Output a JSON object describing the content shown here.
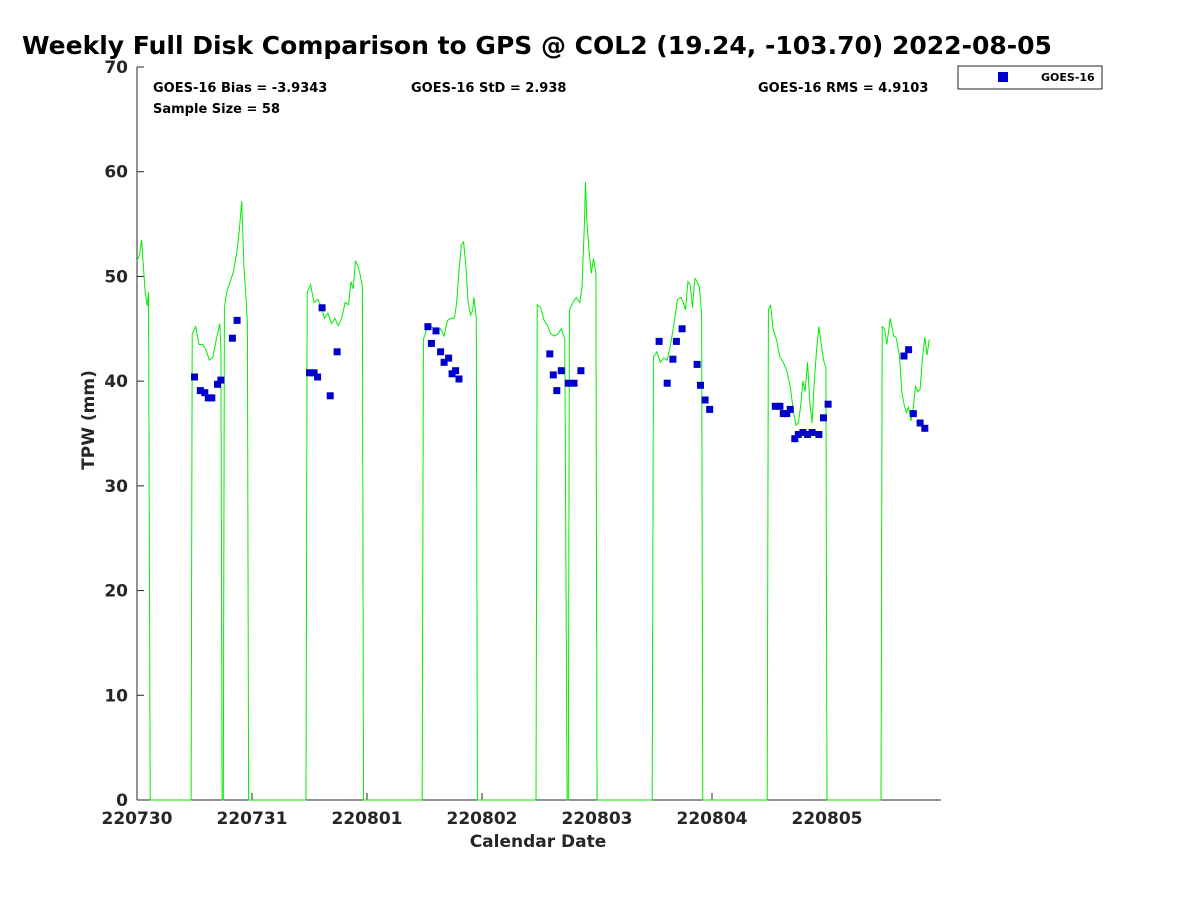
{
  "chart_data": {
    "type": "line",
    "title": "Weekly Full Disk Comparison to GPS @ COL2 (19.24, -103.70) 2022-08-05",
    "xlabel": "Calendar Date",
    "ylabel": "TPW (mm)",
    "xlim": [
      0,
      7
    ],
    "ylim": [
      0,
      70
    ],
    "x_ticks": [
      {
        "value": 0,
        "label": "220730"
      },
      {
        "value": 1,
        "label": "220731"
      },
      {
        "value": 2,
        "label": "220801"
      },
      {
        "value": 3,
        "label": "220802"
      },
      {
        "value": 4,
        "label": "220803"
      },
      {
        "value": 5,
        "label": "220804"
      },
      {
        "value": 6,
        "label": "220805"
      }
    ],
    "y_ticks": [
      0,
      10,
      20,
      30,
      40,
      50,
      60,
      70
    ],
    "grid": false,
    "legend": {
      "position": "outside-top-right",
      "entries": [
        "GOES-16"
      ]
    },
    "stats": {
      "bias": "GOES-16 Bias = -3.9343",
      "std": "GOES-16 StD = 2.938",
      "rms": "GOES-16 RMS = 4.9103",
      "sample": "Sample Size = 58"
    },
    "gps_line": {
      "color": "#00ee00",
      "points": [
        [
          0.0,
          51.5
        ],
        [
          0.02,
          52.0
        ],
        [
          0.04,
          53.5
        ],
        [
          0.07,
          48.5
        ],
        [
          0.09,
          47.2
        ],
        [
          0.1,
          48.5
        ],
        [
          0.115,
          0.0
        ],
        [
          0.47,
          0.0
        ],
        [
          0.48,
          44.5
        ],
        [
          0.51,
          45.2
        ],
        [
          0.54,
          43.5
        ],
        [
          0.57,
          43.5
        ],
        [
          0.6,
          43.0
        ],
        [
          0.63,
          42.0
        ],
        [
          0.66,
          42.3
        ],
        [
          0.69,
          44.0
        ],
        [
          0.72,
          45.5
        ],
        [
          0.73,
          43.0
        ],
        [
          0.74,
          0.0
        ],
        [
          0.75,
          0.0
        ],
        [
          0.76,
          47.0
        ],
        [
          0.78,
          48.5
        ],
        [
          0.81,
          49.5
        ],
        [
          0.84,
          50.5
        ],
        [
          0.87,
          52.5
        ],
        [
          0.89,
          54.5
        ],
        [
          0.91,
          57.2
        ],
        [
          0.93,
          51.0
        ],
        [
          0.95,
          47.5
        ],
        [
          0.96,
          45.5
        ],
        [
          0.97,
          0.0
        ],
        [
          1.47,
          0.0
        ],
        [
          1.48,
          48.5
        ],
        [
          1.51,
          49.2
        ],
        [
          1.54,
          47.5
        ],
        [
          1.57,
          47.8
        ],
        [
          1.6,
          47.2
        ],
        [
          1.63,
          46.0
        ],
        [
          1.66,
          46.5
        ],
        [
          1.69,
          45.5
        ],
        [
          1.72,
          46.0
        ],
        [
          1.75,
          45.3
        ],
        [
          1.78,
          46.0
        ],
        [
          1.81,
          47.5
        ],
        [
          1.84,
          47.3
        ],
        [
          1.86,
          49.5
        ],
        [
          1.88,
          48.8
        ],
        [
          1.9,
          51.5
        ],
        [
          1.92,
          51.0
        ],
        [
          1.94,
          50.2
        ],
        [
          1.96,
          49.0
        ],
        [
          1.97,
          0.0
        ],
        [
          2.48,
          0.0
        ],
        [
          2.49,
          44.0
        ],
        [
          2.52,
          45.0
        ],
        [
          2.55,
          45.3
        ],
        [
          2.58,
          45.0
        ],
        [
          2.61,
          44.8
        ],
        [
          2.64,
          45.0
        ],
        [
          2.67,
          44.3
        ],
        [
          2.7,
          45.8
        ],
        [
          2.73,
          46.0
        ],
        [
          2.76,
          46.0
        ],
        [
          2.78,
          47.5
        ],
        [
          2.8,
          50.5
        ],
        [
          2.82,
          53.0
        ],
        [
          2.84,
          53.3
        ],
        [
          2.86,
          51.0
        ],
        [
          2.88,
          47.5
        ],
        [
          2.9,
          46.3
        ],
        [
          2.92,
          46.8
        ],
        [
          2.93,
          48.0
        ],
        [
          2.95,
          46.0
        ],
        [
          2.96,
          0.0
        ],
        [
          3.47,
          0.0
        ],
        [
          3.48,
          47.3
        ],
        [
          3.51,
          47.0
        ],
        [
          3.54,
          45.8
        ],
        [
          3.57,
          45.3
        ],
        [
          3.6,
          44.5
        ],
        [
          3.63,
          44.3
        ],
        [
          3.66,
          44.5
        ],
        [
          3.69,
          45.0
        ],
        [
          3.72,
          44.0
        ],
        [
          3.74,
          0.0
        ],
        [
          3.75,
          0.0
        ],
        [
          3.76,
          46.8
        ],
        [
          3.79,
          47.5
        ],
        [
          3.82,
          48.0
        ],
        [
          3.85,
          47.5
        ],
        [
          3.87,
          49.0
        ],
        [
          3.89,
          55.0
        ],
        [
          3.9,
          59.0
        ],
        [
          3.91,
          55.5
        ],
        [
          3.93,
          52.5
        ],
        [
          3.95,
          50.3
        ],
        [
          3.97,
          51.7
        ],
        [
          3.99,
          50.3
        ],
        [
          4.0,
          0.0
        ],
        [
          4.48,
          0.0
        ],
        [
          4.49,
          42.3
        ],
        [
          4.52,
          42.8
        ],
        [
          4.55,
          41.8
        ],
        [
          4.58,
          42.2
        ],
        [
          4.61,
          42.0
        ],
        [
          4.64,
          43.5
        ],
        [
          4.67,
          45.5
        ],
        [
          4.7,
          47.8
        ],
        [
          4.73,
          48.0
        ],
        [
          4.75,
          47.5
        ],
        [
          4.77,
          46.8
        ],
        [
          4.79,
          49.5
        ],
        [
          4.81,
          49.2
        ],
        [
          4.83,
          47.0
        ],
        [
          4.85,
          49.8
        ],
        [
          4.87,
          49.5
        ],
        [
          4.89,
          49.0
        ],
        [
          4.91,
          46.5
        ],
        [
          4.92,
          0.0
        ],
        [
          5.48,
          0.0
        ],
        [
          5.49,
          46.8
        ],
        [
          5.51,
          47.3
        ],
        [
          5.53,
          45.0
        ],
        [
          5.56,
          44.0
        ],
        [
          5.59,
          42.3
        ],
        [
          5.62,
          41.8
        ],
        [
          5.65,
          41.0
        ],
        [
          5.68,
          39.5
        ],
        [
          5.71,
          37.0
        ],
        [
          5.73,
          35.8
        ],
        [
          5.75,
          36.0
        ],
        [
          5.77,
          37.5
        ],
        [
          5.79,
          40.0
        ],
        [
          5.81,
          39.0
        ],
        [
          5.83,
          41.8
        ],
        [
          5.85,
          38.0
        ],
        [
          5.87,
          36.0
        ],
        [
          5.89,
          40.0
        ],
        [
          5.91,
          43.0
        ],
        [
          5.93,
          45.2
        ],
        [
          5.95,
          43.5
        ],
        [
          5.97,
          42.0
        ],
        [
          5.99,
          41.3
        ],
        [
          6.0,
          0.0
        ],
        [
          6.47,
          0.0
        ],
        [
          6.48,
          45.2
        ],
        [
          6.5,
          45.0
        ],
        [
          6.52,
          43.5
        ],
        [
          6.55,
          46.0
        ],
        [
          6.58,
          44.3
        ],
        [
          6.6,
          44.2
        ],
        [
          6.63,
          42.5
        ],
        [
          6.65,
          39.0
        ],
        [
          6.67,
          37.8
        ],
        [
          6.69,
          37.0
        ],
        [
          6.71,
          37.5
        ],
        [
          6.73,
          36.2
        ],
        [
          6.75,
          37.5
        ],
        [
          6.77,
          39.5
        ],
        [
          6.79,
          39.0
        ],
        [
          6.81,
          39.2
        ],
        [
          6.83,
          42.3
        ],
        [
          6.85,
          44.2
        ],
        [
          6.87,
          42.5
        ],
        [
          6.89,
          44.0
        ]
      ]
    },
    "series": [
      {
        "name": "GOES-16",
        "color": "#0000cc",
        "points": [
          [
            0.5,
            40.4
          ],
          [
            0.55,
            39.1
          ],
          [
            0.59,
            38.9
          ],
          [
            0.62,
            38.4
          ],
          [
            0.65,
            38.4
          ],
          [
            0.7,
            39.7
          ],
          [
            0.73,
            40.1
          ],
          [
            0.83,
            44.1
          ],
          [
            0.87,
            45.8
          ],
          [
            1.5,
            40.8
          ],
          [
            1.54,
            40.8
          ],
          [
            1.57,
            40.4
          ],
          [
            1.61,
            47.0
          ],
          [
            1.68,
            38.6
          ],
          [
            1.74,
            42.8
          ],
          [
            2.53,
            45.2
          ],
          [
            2.56,
            43.6
          ],
          [
            2.6,
            44.8
          ],
          [
            2.64,
            42.8
          ],
          [
            2.67,
            41.8
          ],
          [
            2.71,
            42.2
          ],
          [
            2.74,
            40.7
          ],
          [
            2.77,
            41.0
          ],
          [
            2.8,
            40.2
          ],
          [
            3.59,
            42.6
          ],
          [
            3.62,
            40.6
          ],
          [
            3.65,
            39.1
          ],
          [
            3.69,
            41.0
          ],
          [
            3.75,
            39.8
          ],
          [
            3.8,
            39.8
          ],
          [
            3.86,
            41.0
          ],
          [
            4.54,
            43.8
          ],
          [
            4.61,
            39.8
          ],
          [
            4.66,
            42.1
          ],
          [
            4.69,
            43.8
          ],
          [
            4.74,
            45.0
          ],
          [
            4.87,
            41.6
          ],
          [
            4.9,
            39.6
          ],
          [
            4.94,
            38.2
          ],
          [
            4.98,
            37.3
          ],
          [
            5.55,
            37.6
          ],
          [
            5.59,
            37.6
          ],
          [
            5.62,
            36.9
          ],
          [
            5.65,
            36.9
          ],
          [
            5.68,
            37.3
          ],
          [
            5.72,
            34.5
          ],
          [
            5.75,
            34.9
          ],
          [
            5.79,
            35.1
          ],
          [
            5.83,
            34.9
          ],
          [
            5.87,
            35.1
          ],
          [
            5.93,
            34.9
          ],
          [
            5.97,
            36.5
          ],
          [
            6.01,
            37.8
          ],
          [
            6.67,
            42.4
          ],
          [
            6.71,
            43.0
          ],
          [
            6.75,
            36.9
          ],
          [
            6.81,
            36.0
          ],
          [
            6.85,
            35.5
          ]
        ]
      }
    ]
  }
}
